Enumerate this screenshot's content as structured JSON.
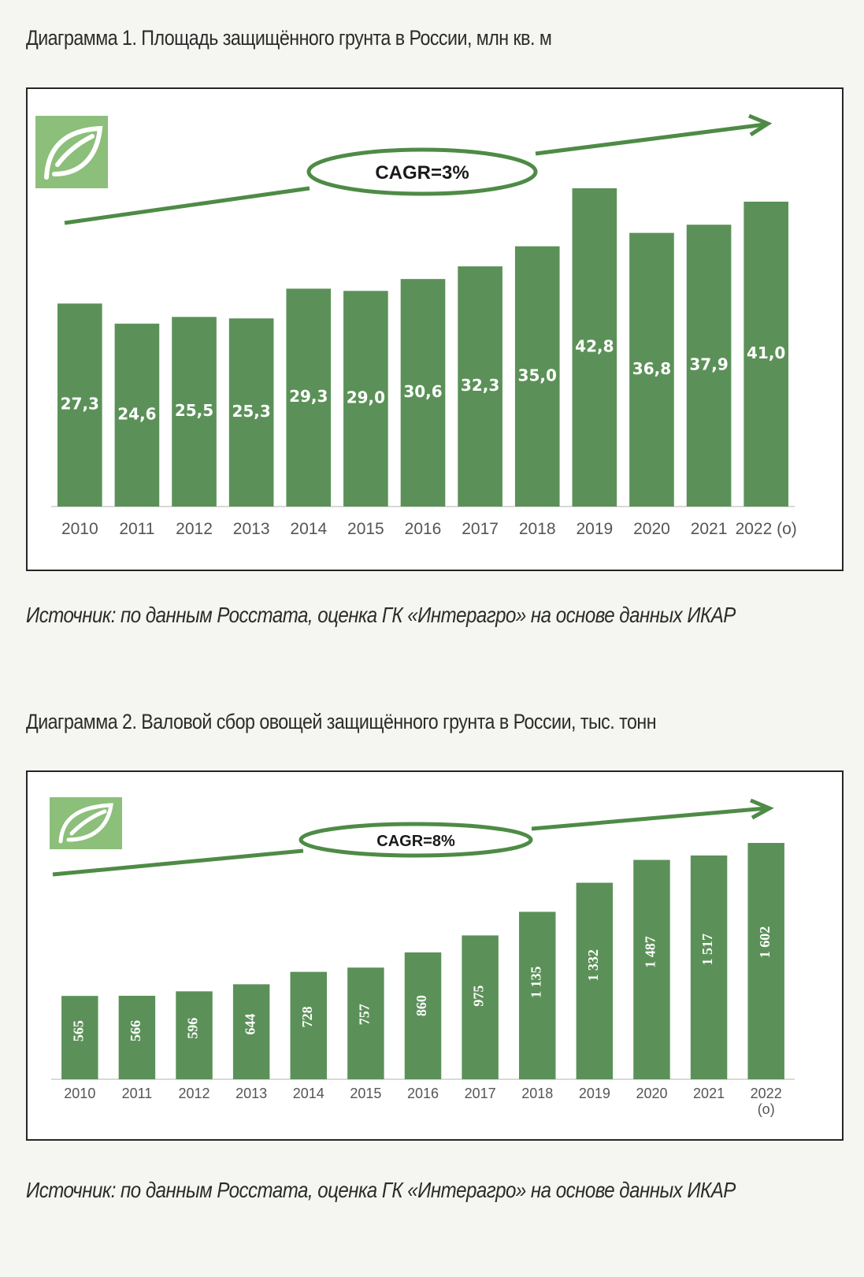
{
  "colors": {
    "bar": "#5b9158",
    "arrow": "#4e8b46",
    "label": "#ffffff",
    "tick": "#555555",
    "logo_bg": "#8cbf7a"
  },
  "icons": {
    "logo": "leaf-logo-icon"
  },
  "chart1": {
    "title": "Диаграмма 1. Площадь защищённого грунта в России, млн кв. м",
    "source": "Источник: по данным Росстата, оценка ГК «Интерагро» на основе данных ИКАР",
    "cagr_label": "CAGR=3%"
  },
  "chart2": {
    "title": "Диаграмма 2. Валовой сбор овощей защищённого грунта в России, тыс. тонн",
    "source": "Источник: по данным Росстата, оценка ГК «Интерагро» на основе данных ИКАР",
    "cagr_label": "CAGR=8%"
  },
  "chart_data": [
    {
      "type": "bar",
      "title": "Диаграмма 1. Площадь защищённого грунта в России, млн кв. м",
      "categories": [
        "2010",
        "2011",
        "2012",
        "2013",
        "2014",
        "2015",
        "2016",
        "2017",
        "2018",
        "2019",
        "2020",
        "2021",
        "2022 (о)"
      ],
      "values": [
        27.3,
        24.6,
        25.5,
        25.3,
        29.3,
        29.0,
        30.6,
        32.3,
        35.0,
        42.8,
        36.8,
        37.9,
        41.0
      ],
      "value_labels": [
        "27,3",
        "24,6",
        "25,5",
        "25,3",
        "29,3",
        "29,0",
        "30,6",
        "32,3",
        "35,0",
        "42,8",
        "36,8",
        "37,9",
        "41,0"
      ],
      "annotation": "CAGR=3%",
      "xlabel": "",
      "ylabel": "",
      "grid": false,
      "legend": "none"
    },
    {
      "type": "bar",
      "title": "Диаграмма 2. Валовой сбор овощей защищённого грунта в России, тыс. тонн",
      "categories": [
        "2010",
        "2011",
        "2012",
        "2013",
        "2014",
        "2015",
        "2016",
        "2017",
        "2018",
        "2019",
        "2020",
        "2021",
        "2022 (о)"
      ],
      "values": [
        565,
        566,
        596,
        644,
        728,
        757,
        860,
        975,
        1135,
        1332,
        1487,
        1517,
        1602
      ],
      "value_labels": [
        "565",
        "566",
        "596",
        "644",
        "728",
        "757",
        "860",
        "975",
        "1 135",
        "1 332",
        "1 487",
        "1 517",
        "1 602"
      ],
      "annotation": "CAGR=8%",
      "xlabel": "",
      "ylabel": "",
      "grid": false,
      "legend": "none"
    }
  ]
}
